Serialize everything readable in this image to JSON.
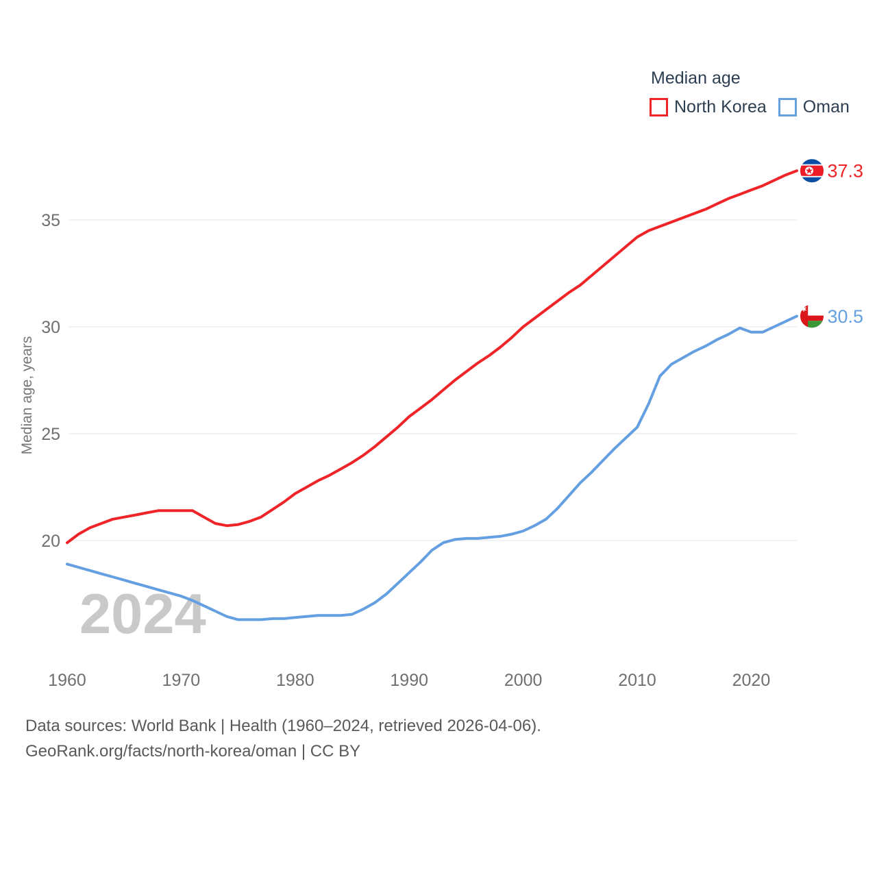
{
  "legend": {
    "title": "Median age",
    "items": [
      {
        "label": "North Korea",
        "color": "#ee2428"
      },
      {
        "label": "Oman",
        "color": "#64a0e1"
      }
    ]
  },
  "watermark": "2024",
  "footer": {
    "line1": "Data sources: World Bank | Health (1960–2024, retrieved 2026-04-06).",
    "line2": "GeoRank.org/facts/north-korea/oman | CC BY"
  },
  "chart_data": {
    "type": "line",
    "title": "Median age",
    "xlabel": "",
    "ylabel": "Median age, years",
    "x_ticks": [
      1960,
      1970,
      1980,
      1990,
      2000,
      2010,
      2020
    ],
    "y_ticks": [
      20,
      25,
      30,
      35
    ],
    "xlim": [
      1960,
      2024
    ],
    "ylim": [
      15.5,
      38.5
    ],
    "grid": "horizontal-only",
    "legend_position": "top-right",
    "years": [
      1960,
      1961,
      1962,
      1963,
      1964,
      1965,
      1966,
      1967,
      1968,
      1969,
      1970,
      1971,
      1972,
      1973,
      1974,
      1975,
      1976,
      1977,
      1978,
      1979,
      1980,
      1981,
      1982,
      1983,
      1984,
      1985,
      1986,
      1987,
      1988,
      1989,
      1990,
      1991,
      1992,
      1993,
      1994,
      1995,
      1996,
      1997,
      1998,
      1999,
      2000,
      2001,
      2002,
      2003,
      2004,
      2005,
      2006,
      2007,
      2008,
      2009,
      2010,
      2011,
      2012,
      2013,
      2014,
      2015,
      2016,
      2017,
      2018,
      2019,
      2020,
      2021,
      2022,
      2023,
      2024
    ],
    "series": [
      {
        "name": "North Korea",
        "color": "#ee2428",
        "end_label": "37.3",
        "flag": "north-korea",
        "values": [
          19.9,
          20.3,
          20.6,
          20.8,
          21.0,
          21.1,
          21.2,
          21.3,
          21.4,
          21.4,
          21.4,
          21.4,
          21.1,
          20.8,
          20.7,
          20.75,
          20.9,
          21.1,
          21.45,
          21.8,
          22.2,
          22.5,
          22.8,
          23.05,
          23.35,
          23.65,
          24.0,
          24.4,
          24.85,
          25.3,
          25.8,
          26.2,
          26.6,
          27.05,
          27.5,
          27.9,
          28.3,
          28.65,
          29.05,
          29.5,
          30.0,
          30.4,
          30.8,
          31.2,
          31.6,
          31.95,
          32.4,
          32.85,
          33.3,
          33.75,
          34.2,
          34.5,
          34.7,
          34.9,
          35.1,
          35.3,
          35.5,
          35.75,
          36.0,
          36.2,
          36.4,
          36.6,
          36.85,
          37.1,
          37.3
        ]
      },
      {
        "name": "Oman",
        "color": "#64a0e1",
        "end_label": "30.5",
        "flag": "oman",
        "values": [
          18.9,
          18.75,
          18.6,
          18.45,
          18.3,
          18.15,
          18.0,
          17.85,
          17.7,
          17.55,
          17.4,
          17.2,
          16.95,
          16.7,
          16.45,
          16.3,
          16.3,
          16.3,
          16.35,
          16.35,
          16.4,
          16.45,
          16.5,
          16.5,
          16.5,
          16.55,
          16.8,
          17.1,
          17.5,
          18.0,
          18.5,
          19.0,
          19.55,
          19.9,
          20.05,
          20.1,
          20.1,
          20.15,
          20.2,
          20.3,
          20.45,
          20.7,
          21.0,
          21.5,
          22.1,
          22.7,
          23.2,
          23.75,
          24.3,
          24.8,
          25.3,
          26.4,
          27.7,
          28.25,
          28.55,
          28.85,
          29.1,
          29.4,
          29.65,
          29.95,
          29.75,
          29.75,
          30.0,
          30.25,
          30.5
        ]
      }
    ]
  }
}
